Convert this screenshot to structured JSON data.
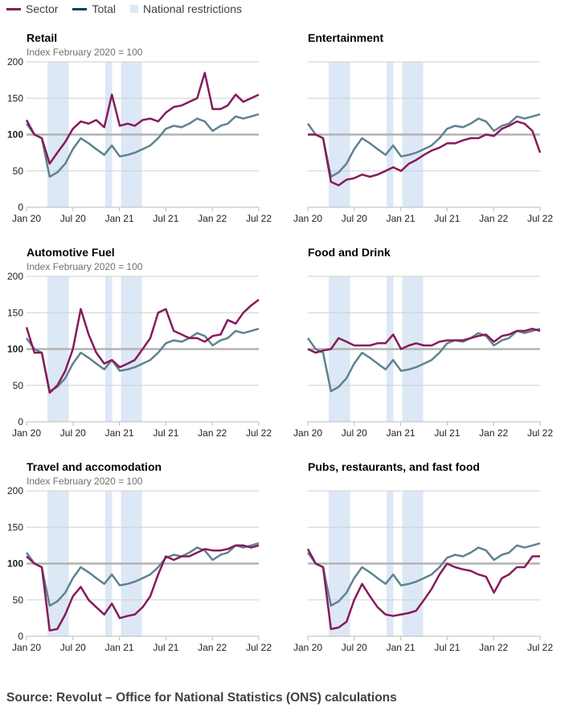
{
  "legend": {
    "sector": "Sector",
    "total": "Total",
    "restrictions": "National restrictions"
  },
  "colors": {
    "sector": "#871a5b",
    "total": "#5f8291",
    "total_legend": "#0f3c57",
    "restrictions": "#dce8f5",
    "reference": "#b3b3b3",
    "grid": "#cfcfcf"
  },
  "source": "Source: Revolut – Office for National Statistics (ONS) calculations",
  "chart_data": {
    "type": "line",
    "subtitle": "Index February 2020 = 100",
    "ylim": [
      0,
      200
    ],
    "yticks": [
      "0",
      "50",
      "100",
      "150",
      "200"
    ],
    "reference_line": 100,
    "xlim": [
      "2020-01",
      "2022-07"
    ],
    "xticks": [
      "Jan 20",
      "Jul 20",
      "Jan 21",
      "Jul 21",
      "Jan 22",
      "Jul 22"
    ],
    "grid": true,
    "legend_position": "top-left",
    "restrictions": [
      [
        "2020-03-23",
        "2020-06-15"
      ],
      [
        "2020-11-05",
        "2020-12-02"
      ],
      [
        "2021-01-06",
        "2021-03-29"
      ]
    ],
    "x": [
      "2020-01",
      "2020-02",
      "2020-03",
      "2020-04",
      "2020-05",
      "2020-06",
      "2020-07",
      "2020-08",
      "2020-09",
      "2020-10",
      "2020-11",
      "2020-12",
      "2021-01",
      "2021-02",
      "2021-03",
      "2021-04",
      "2021-05",
      "2021-06",
      "2021-07",
      "2021-08",
      "2021-09",
      "2021-10",
      "2021-11",
      "2021-12",
      "2022-01",
      "2022-02",
      "2022-03",
      "2022-04",
      "2022-05",
      "2022-06",
      "2022-07"
    ],
    "total": [
      115,
      100,
      95,
      42,
      48,
      60,
      80,
      95,
      88,
      80,
      72,
      85,
      70,
      72,
      75,
      80,
      85,
      95,
      108,
      112,
      110,
      115,
      122,
      118,
      105,
      112,
      115,
      125,
      122,
      125,
      128
    ],
    "panels": [
      {
        "title": "Retail",
        "sector": [
          120,
          100,
          95,
          60,
          75,
          90,
          108,
          118,
          115,
          120,
          110,
          155,
          112,
          115,
          112,
          120,
          122,
          118,
          130,
          138,
          140,
          145,
          150,
          185,
          135,
          135,
          140,
          155,
          145,
          150,
          155
        ]
      },
      {
        "title": "Entertainment",
        "sector": [
          100,
          100,
          95,
          35,
          30,
          38,
          40,
          45,
          42,
          45,
          50,
          55,
          50,
          60,
          65,
          72,
          78,
          82,
          88,
          88,
          92,
          95,
          95,
          100,
          98,
          108,
          112,
          118,
          115,
          105,
          75
        ]
      },
      {
        "title": "Automotive Fuel",
        "sector": [
          130,
          95,
          95,
          40,
          50,
          70,
          100,
          155,
          120,
          95,
          80,
          85,
          75,
          80,
          85,
          100,
          115,
          150,
          155,
          125,
          120,
          115,
          115,
          110,
          118,
          120,
          140,
          135,
          150,
          160,
          168
        ]
      },
      {
        "title": "Food and Drink",
        "sector": [
          100,
          95,
          98,
          100,
          115,
          110,
          105,
          105,
          105,
          108,
          108,
          120,
          100,
          105,
          108,
          105,
          105,
          110,
          112,
          112,
          112,
          115,
          118,
          120,
          110,
          118,
          120,
          125,
          125,
          128,
          125
        ]
      },
      {
        "title": "Travel and accomodation",
        "sector": [
          110,
          100,
          95,
          8,
          10,
          30,
          55,
          68,
          50,
          40,
          30,
          45,
          25,
          28,
          30,
          40,
          55,
          85,
          110,
          105,
          110,
          110,
          115,
          120,
          118,
          118,
          120,
          125,
          125,
          122,
          125
        ]
      },
      {
        "title": "Pubs, restaurants, and fast food",
        "sector": [
          120,
          100,
          95,
          10,
          12,
          20,
          50,
          72,
          55,
          40,
          30,
          28,
          30,
          32,
          35,
          50,
          65,
          85,
          100,
          95,
          92,
          90,
          85,
          82,
          60,
          80,
          85,
          95,
          95,
          110,
          110
        ]
      }
    ]
  }
}
